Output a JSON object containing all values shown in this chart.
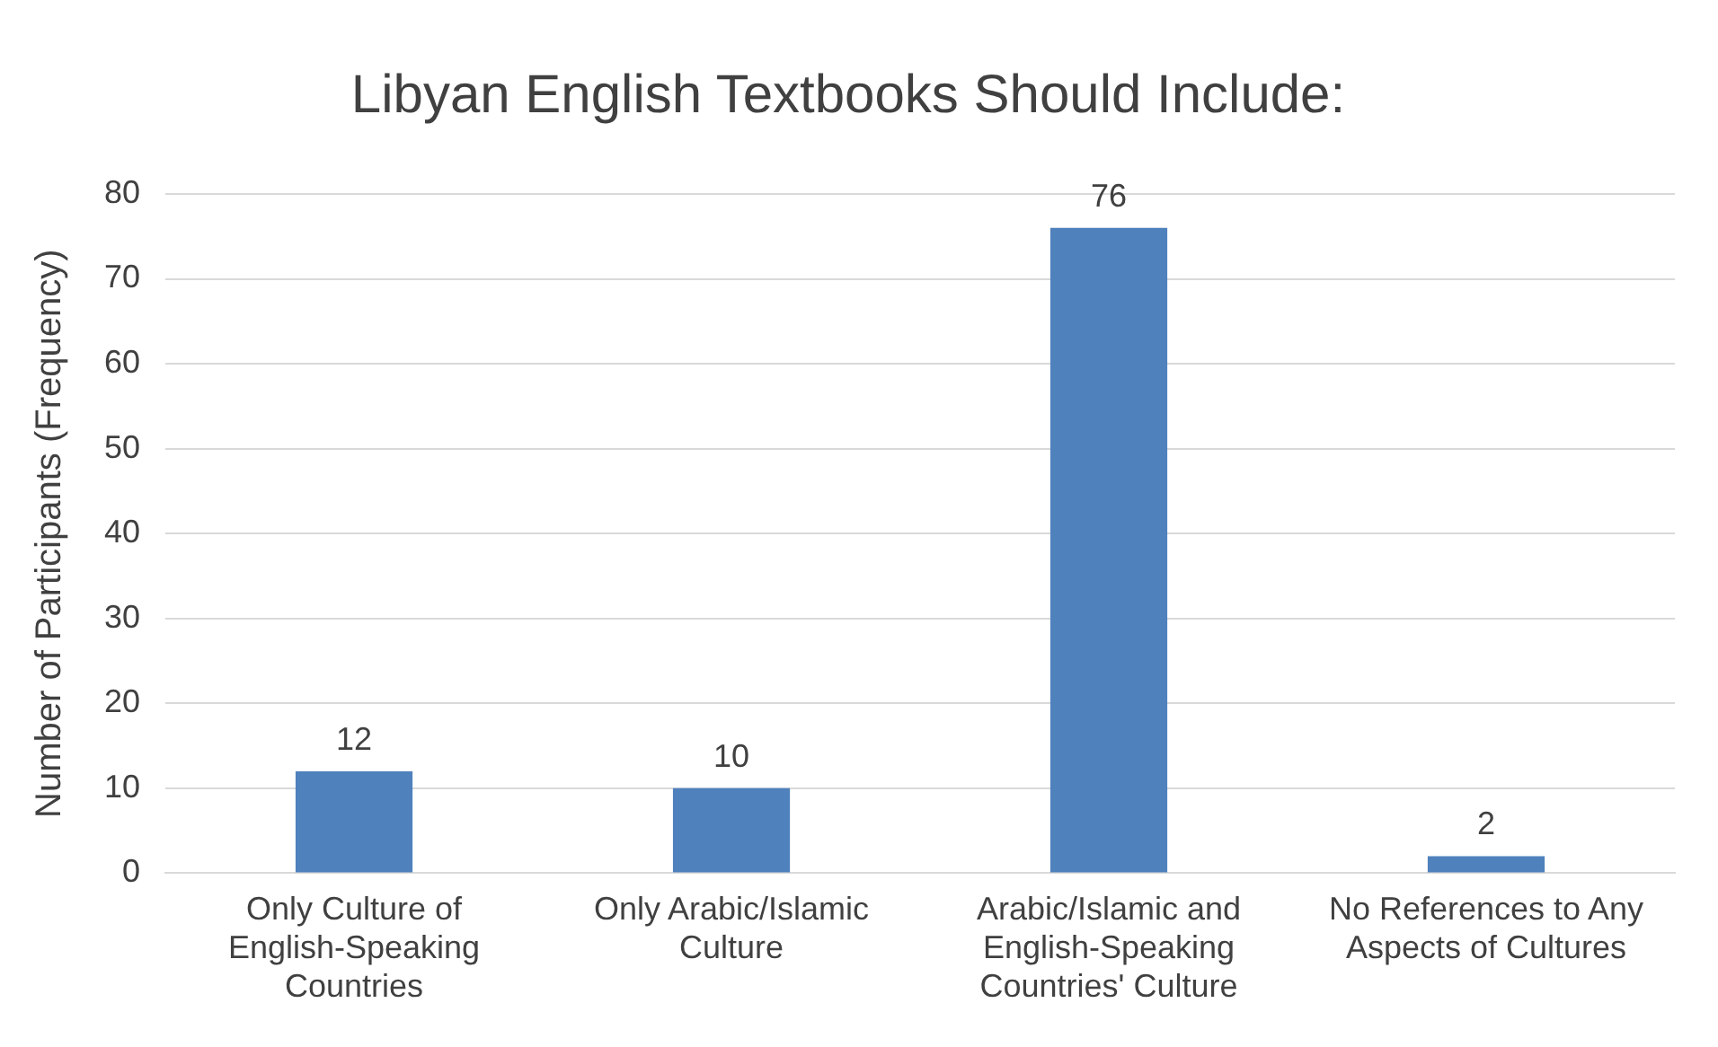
{
  "chart_data": {
    "type": "bar",
    "title": "Libyan English Textbooks Should Include:",
    "ylabel": "Number of Participants (Frequency)",
    "categories": [
      "Only Culture of English-Speaking Countries",
      "Only Arabic/Islamic Culture",
      "Arabic/Islamic and English-Speaking Countries' Culture",
      "No References to Any Aspects of Cultures"
    ],
    "values": [
      12,
      10,
      76,
      2
    ],
    "color": "#4f81bd",
    "ylim": [
      0,
      80
    ],
    "yticks": [
      0,
      10,
      20,
      30,
      40,
      50,
      60,
      70,
      80
    ],
    "grid": "y",
    "data_labels": true,
    "legend": false
  }
}
